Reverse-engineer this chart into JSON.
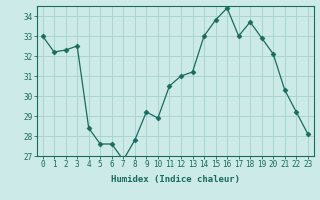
{
  "x": [
    0,
    1,
    2,
    3,
    4,
    5,
    6,
    7,
    8,
    9,
    10,
    11,
    12,
    13,
    14,
    15,
    16,
    17,
    18,
    19,
    20,
    21,
    22,
    23
  ],
  "y": [
    33.0,
    32.2,
    32.3,
    32.5,
    28.4,
    27.6,
    27.6,
    26.8,
    27.8,
    29.2,
    28.9,
    30.5,
    31.0,
    31.2,
    33.0,
    33.8,
    34.4,
    33.0,
    33.7,
    32.9,
    32.1,
    30.3,
    29.2,
    28.1
  ],
  "line_color": "#1a6b5e",
  "marker": "D",
  "marker_size": 2.5,
  "bg_color": "#cceae8",
  "grid_color": "#aad4d1",
  "xlabel": "Humidex (Indice chaleur)",
  "ylim": [
    27,
    34.5
  ],
  "yticks": [
    27,
    28,
    29,
    30,
    31,
    32,
    33,
    34
  ],
  "xticks": [
    0,
    1,
    2,
    3,
    4,
    5,
    6,
    7,
    8,
    9,
    10,
    11,
    12,
    13,
    14,
    15,
    16,
    17,
    18,
    19,
    20,
    21,
    22,
    23
  ],
  "font_color": "#1a6b5e",
  "tick_fontsize": 5.5,
  "xlabel_fontsize": 6.5
}
